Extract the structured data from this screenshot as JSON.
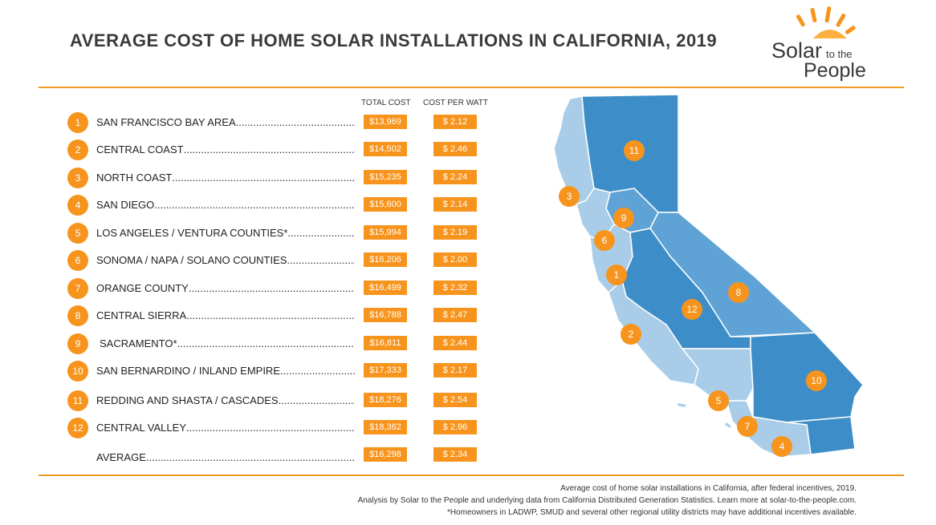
{
  "title": "AVERAGE COST OF HOME SOLAR INSTALLATIONS IN CALIFORNIA, 2019",
  "logo": {
    "word1": "Solar",
    "word2": "to the",
    "word3": "People"
  },
  "columns": {
    "total": "TOTAL COST",
    "cpw": "COST PER WATT"
  },
  "regions": [
    {
      "num": "1",
      "name": "SAN FRANCISCO BAY AREA",
      "total": "$13,969",
      "cpw": "$ 2.12"
    },
    {
      "num": "2",
      "name": "CENTRAL COAST",
      "total": "$14,502",
      "cpw": "$ 2.46"
    },
    {
      "num": "3",
      "name": "NORTH COAST",
      "total": "$15,235",
      "cpw": "$ 2.24"
    },
    {
      "num": "4",
      "name": "SAN DIEGO",
      "total": "$15,600",
      "cpw": "$ 2.14"
    },
    {
      "num": "5",
      "name": "LOS ANGELES / VENTURA COUNTIES*",
      "total": "$15,994",
      "cpw": "$ 2.19"
    },
    {
      "num": "6",
      "name": "SONOMA / NAPA / SOLANO COUNTIES",
      "total": "$16,206",
      "cpw": "$ 2.00"
    },
    {
      "num": "7",
      "name": "ORANGE COUNTY",
      "total": "$16,499",
      "cpw": "$ 2.32"
    },
    {
      "num": "8",
      "name": "CENTRAL SIERRA",
      "total": "$16,788",
      "cpw": "$ 2.47"
    },
    {
      "num": "9",
      "name": "SACRAMENTO*",
      "total": "$16,811",
      "cpw": "$ 2.44"
    },
    {
      "num": "10",
      "name": "SAN BERNARDINO / INLAND EMPIRE",
      "total": "$17,333",
      "cpw": "$ 2.17"
    },
    {
      "num": "11",
      "name": "REDDING AND SHASTA / CASCADES",
      "total": "$18,276",
      "cpw": "$ 2.54"
    },
    {
      "num": "12",
      "name": "CENTRAL VALLEY",
      "total": "$18,362",
      "cpw": "$ 2.96"
    }
  ],
  "average": {
    "name": "AVERAGE",
    "total": "$16,298",
    "cpw": "$ 2.34"
  },
  "footnotes": [
    "Average cost of home solar installations in California, after federal incentives, 2019.",
    "Analysis by Solar to the People and underlying data from California Distributed Generation Statistics. Learn more at solar-to-the-people.com.",
    "*Homeowners in LADWP, SMUD and several other regional utility districts may have additional incentives available."
  ],
  "colors": {
    "accent": "#f7941d",
    "rule": "#f39a1e",
    "map_dark": "#3d8ec8",
    "map_mid": "#5fa3d6",
    "map_light": "#a9cde8"
  }
}
